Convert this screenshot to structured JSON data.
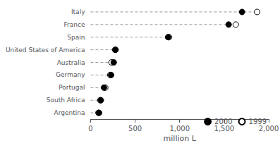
{
  "chart_data": {
    "type": "scatter",
    "orientation": "horizontal",
    "xlabel": "million L",
    "categories": [
      "Italy",
      "France",
      "Spain",
      "United States of America",
      "Australia",
      "Germany",
      "Portugal",
      "South Africa",
      "Argentina"
    ],
    "series": [
      {
        "name": "2000",
        "color": "black",
        "marker": "circle",
        "values": [
          1700,
          1550,
          870,
          280,
          260,
          230,
          150,
          115,
          95
        ]
      },
      {
        "name": "1999",
        "color": "white",
        "marker": "circle",
        "values": [
          1870,
          1630,
          880,
          275,
          235,
          220,
          165,
          108,
          88
        ]
      }
    ],
    "xlim": [
      0,
      2000
    ],
    "xticks": [
      0,
      500,
      1000,
      1500,
      2000
    ],
    "grid": false,
    "legend": "lower right"
  }
}
